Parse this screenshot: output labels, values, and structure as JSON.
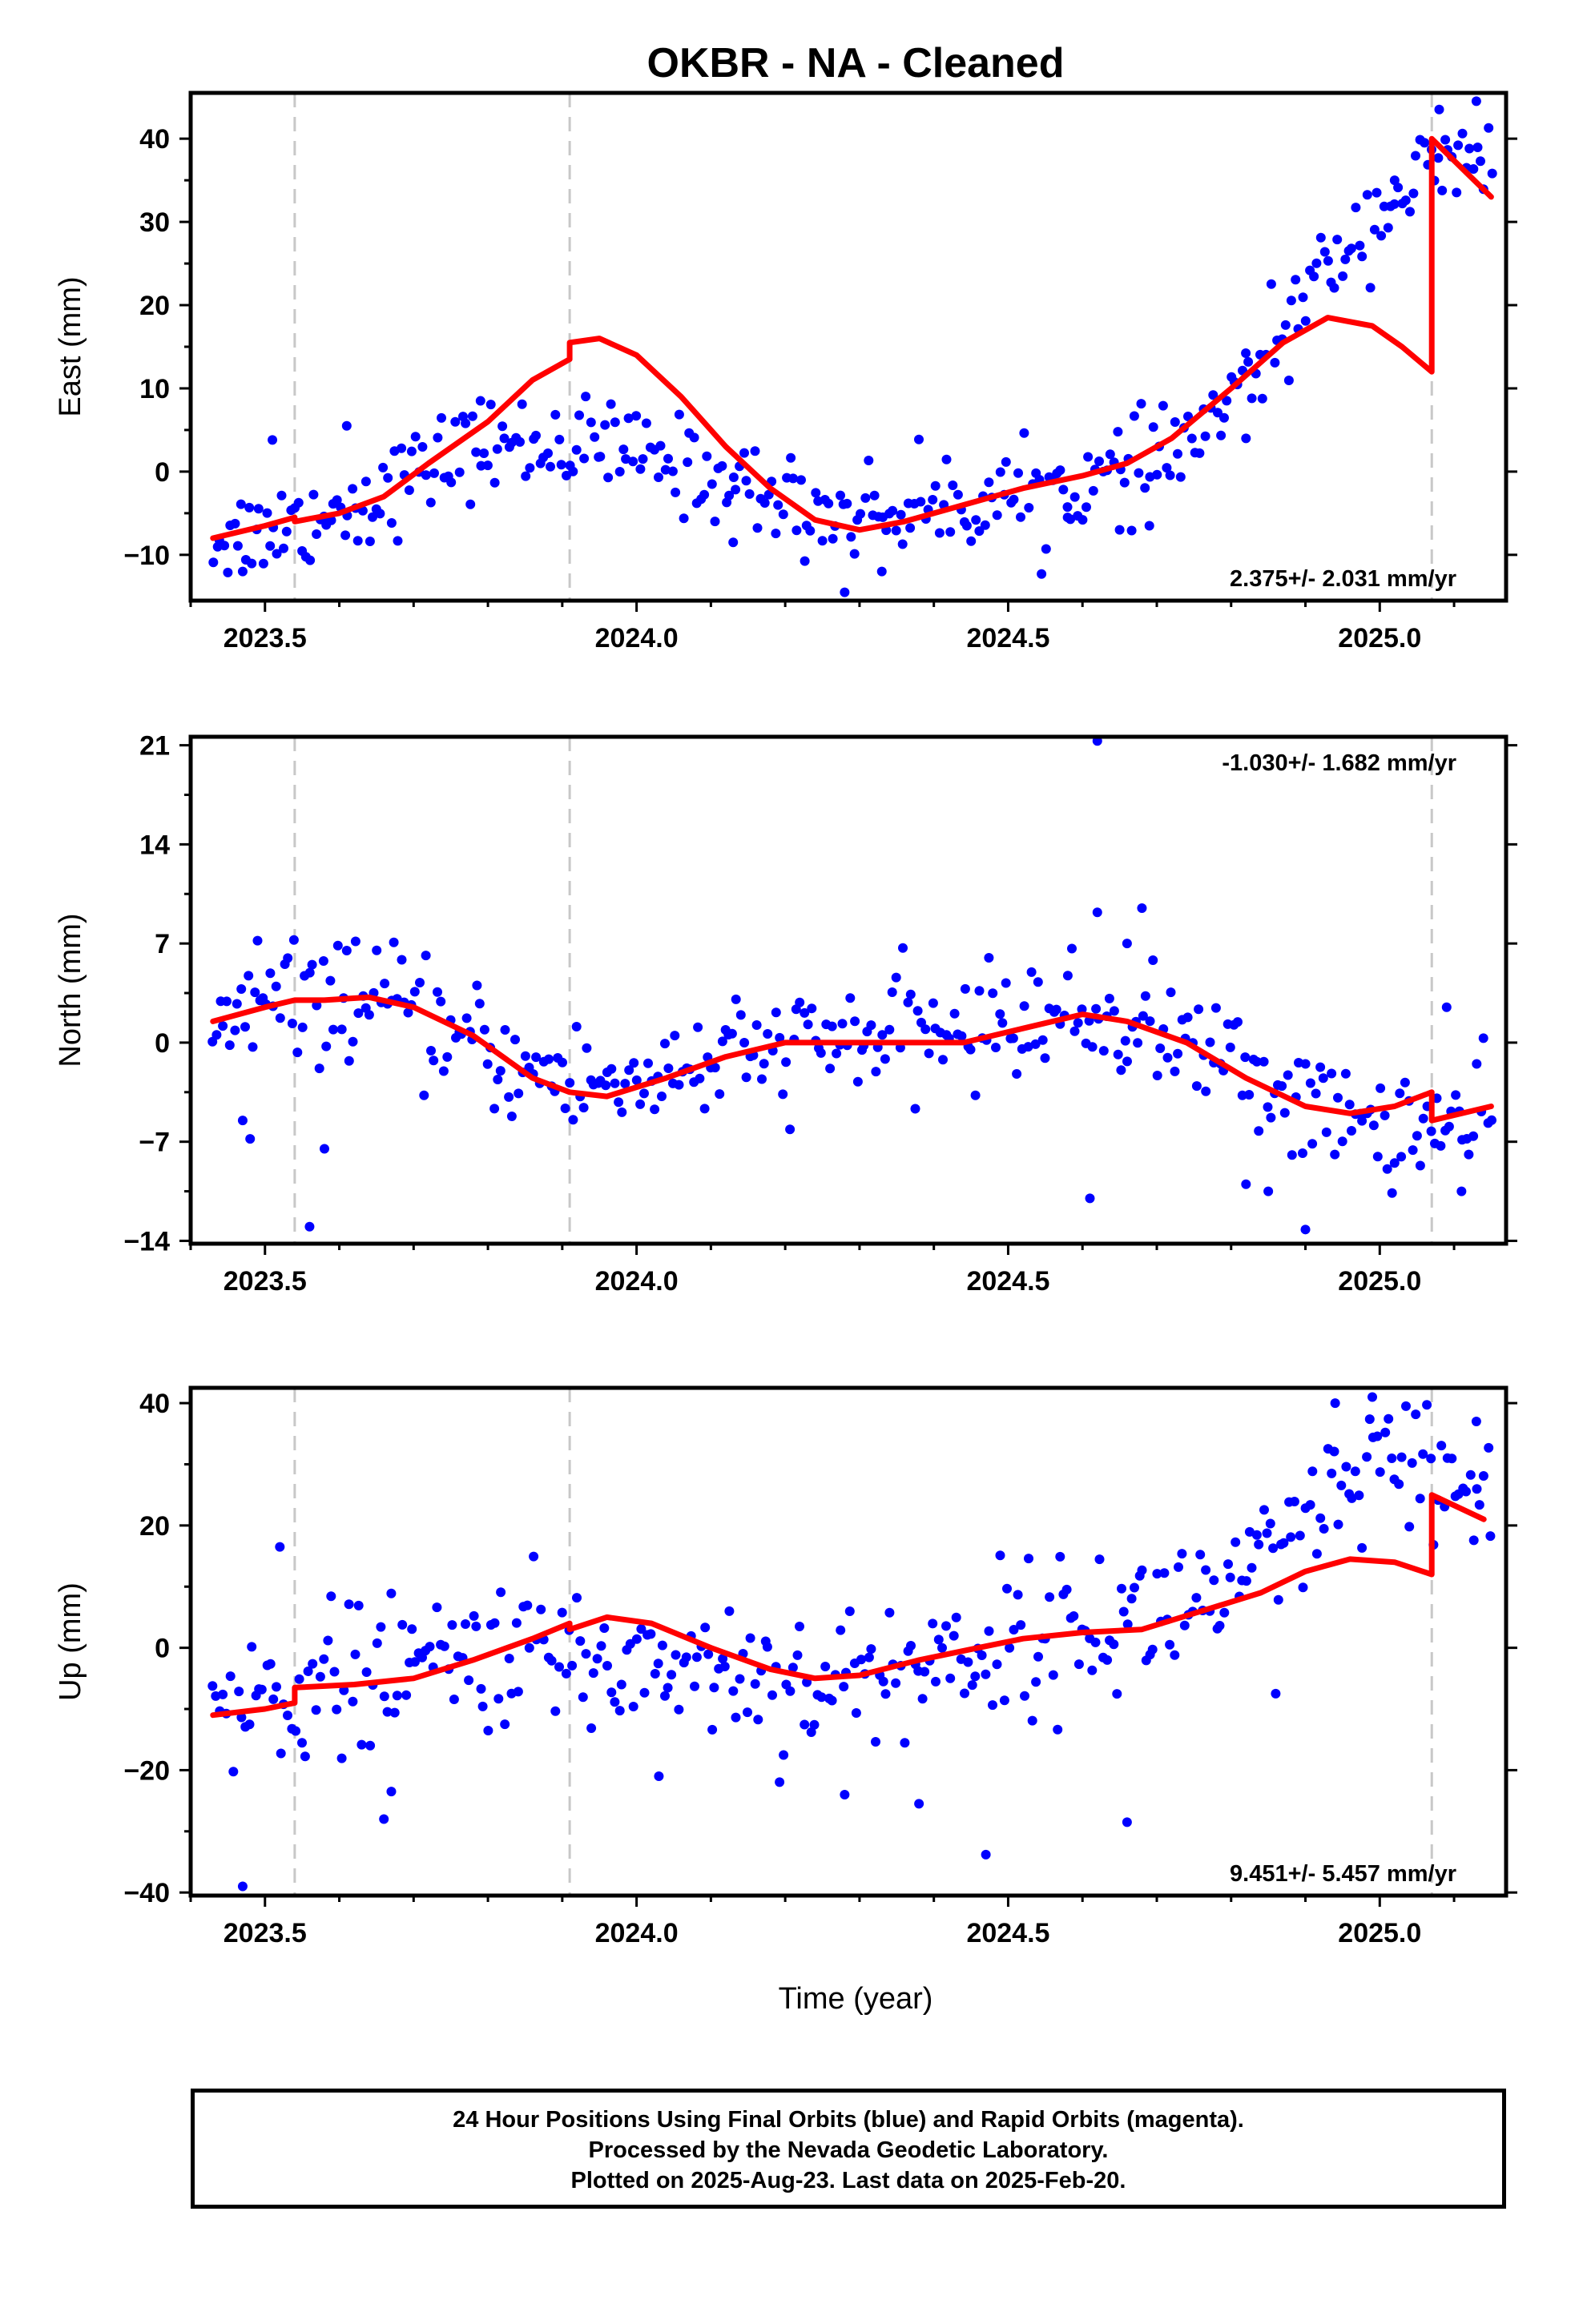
{
  "title": "OKBR  - NA - Cleaned",
  "xlabel": "Time (year)",
  "footer": {
    "line1": "24 Hour Positions Using Final Orbits (blue) and Rapid Orbits (magenta).",
    "line2": "Processed by the Nevada Geodetic Laboratory.",
    "line3": "Plotted on 2025-Aug-23. Last data on 2025-Feb-20."
  },
  "colors": {
    "points": "#0000ff",
    "model": "#ff0000",
    "events": "#c8c8c8",
    "frame": "#000000"
  },
  "chart_data": [
    {
      "type": "scatter",
      "ylabel": "East (mm)",
      "rate": "2.375+/- 2.031 mm/yr",
      "rate_position": "bottom-right",
      "xlim": [
        2023.4,
        2025.17
      ],
      "ylim": [
        -15.5,
        45.5
      ],
      "xticks": [
        2023.5,
        2024.0,
        2024.5,
        2025.0
      ],
      "xtick_labels": [
        "2023.5",
        "2024.0",
        "2024.5",
        "2025.0"
      ],
      "yticks": [
        -10,
        0,
        10,
        20,
        30,
        40
      ],
      "ytick_labels": [
        "−10",
        "0",
        "10",
        "20",
        "30",
        "40"
      ],
      "event_lines": [
        2023.54,
        2023.91,
        2025.07
      ],
      "series": [
        {
          "role": "model",
          "points": [
            [
              2023.43,
              -8
            ],
            [
              2023.5,
              -6.5
            ],
            [
              2023.54,
              -5.5
            ],
            [
              2023.54,
              -6
            ],
            [
              2023.6,
              -5
            ],
            [
              2023.66,
              -3
            ],
            [
              2023.72,
              1
            ],
            [
              2023.8,
              6
            ],
            [
              2023.86,
              11
            ],
            [
              2023.91,
              13.5
            ],
            [
              2023.91,
              15.5
            ],
            [
              2023.95,
              16
            ],
            [
              2024.0,
              14
            ],
            [
              2024.06,
              9
            ],
            [
              2024.12,
              3
            ],
            [
              2024.18,
              -2
            ],
            [
              2024.24,
              -5.8
            ],
            [
              2024.3,
              -7
            ],
            [
              2024.36,
              -6
            ],
            [
              2024.44,
              -4
            ],
            [
              2024.52,
              -2
            ],
            [
              2024.6,
              -0.5
            ],
            [
              2024.66,
              1
            ],
            [
              2024.72,
              4
            ],
            [
              2024.8,
              10
            ],
            [
              2024.87,
              15.5
            ],
            [
              2024.93,
              18.5
            ],
            [
              2024.99,
              17.5
            ],
            [
              2025.03,
              15
            ],
            [
              2025.07,
              12
            ],
            [
              2025.07,
              40
            ],
            [
              2025.15,
              33
            ]
          ]
        },
        {
          "role": "observations",
          "trend": [
            [
              2023.43,
              -8
            ],
            [
              2023.55,
              -6
            ],
            [
              2023.65,
              -3
            ],
            [
              2023.75,
              2
            ],
            [
              2023.85,
              3.5
            ],
            [
              2023.95,
              3
            ],
            [
              2024.05,
              1
            ],
            [
              2024.15,
              -2
            ],
            [
              2024.25,
              -5
            ],
            [
              2024.35,
              -4.5
            ],
            [
              2024.45,
              -3.5
            ],
            [
              2024.55,
              -2.5
            ],
            [
              2024.65,
              -0.5
            ],
            [
              2024.72,
              2
            ],
            [
              2024.8,
              8
            ],
            [
              2024.88,
              18
            ],
            [
              2024.95,
              27
            ],
            [
              2025.02,
              33
            ],
            [
              2025.07,
              36
            ],
            [
              2025.15,
              37
            ]
          ],
          "scatter_sd": 2.8,
          "outliers": [
            [
              2023.47,
              -12
            ],
            [
              2023.51,
              3.8
            ],
            [
              2023.61,
              5.5
            ],
            [
              2023.79,
              8.5
            ],
            [
              2024.13,
              -8.5
            ],
            [
              2024.28,
              -14.5
            ],
            [
              2024.33,
              -12
            ],
            [
              2024.58,
              -5.5
            ],
            [
              2024.65,
              -7
            ],
            [
              2024.69,
              -6.5
            ],
            [
              2024.82,
              4
            ],
            [
              2025.08,
              43.5
            ],
            [
              2025.13,
              44.5
            ],
            [
              2025.02,
              35
            ]
          ],
          "count": 360
        }
      ]
    },
    {
      "type": "scatter",
      "ylabel": "North (mm)",
      "rate": "-1.030+/- 1.682 mm/yr",
      "rate_position": "top-right",
      "xlim": [
        2023.4,
        2025.17
      ],
      "ylim": [
        -14.2,
        21.6
      ],
      "xticks": [
        2023.5,
        2024.0,
        2024.5,
        2025.0
      ],
      "xtick_labels": [
        "2023.5",
        "2024.0",
        "2024.5",
        "2025.0"
      ],
      "yticks": [
        -14,
        -7,
        0,
        7,
        14,
        21
      ],
      "ytick_labels": [
        "−14",
        "−7",
        "0",
        "7",
        "14",
        "21"
      ],
      "event_lines": [
        2023.54,
        2023.91,
        2025.07
      ],
      "series": [
        {
          "role": "model",
          "points": [
            [
              2023.43,
              1.5
            ],
            [
              2023.5,
              2.5
            ],
            [
              2023.54,
              3
            ],
            [
              2023.58,
              3
            ],
            [
              2023.64,
              3.2
            ],
            [
              2023.7,
              2.5
            ],
            [
              2023.78,
              0.5
            ],
            [
              2023.86,
              -2.5
            ],
            [
              2023.91,
              -3.5
            ],
            [
              2023.96,
              -3.8
            ],
            [
              2024.04,
              -2.5
            ],
            [
              2024.12,
              -1
            ],
            [
              2024.2,
              0
            ],
            [
              2024.28,
              0
            ],
            [
              2024.36,
              0
            ],
            [
              2024.44,
              0
            ],
            [
              2024.52,
              1
            ],
            [
              2024.6,
              2
            ],
            [
              2024.66,
              1.5
            ],
            [
              2024.74,
              0
            ],
            [
              2024.82,
              -2.5
            ],
            [
              2024.9,
              -4.5
            ],
            [
              2024.96,
              -5
            ],
            [
              2025.02,
              -4.5
            ],
            [
              2025.07,
              -3.5
            ],
            [
              2025.07,
              -5.5
            ],
            [
              2025.15,
              -4.5
            ]
          ]
        },
        {
          "role": "observations",
          "trend": [
            [
              2023.43,
              1.5
            ],
            [
              2023.55,
              3
            ],
            [
              2023.65,
              3
            ],
            [
              2023.75,
              0.5
            ],
            [
              2023.85,
              -2
            ],
            [
              2023.95,
              -3
            ],
            [
              2024.05,
              -2
            ],
            [
              2024.15,
              -1
            ],
            [
              2024.25,
              0
            ],
            [
              2024.35,
              0.5
            ],
            [
              2024.45,
              1
            ],
            [
              2024.55,
              2
            ],
            [
              2024.65,
              1.5
            ],
            [
              2024.75,
              0
            ],
            [
              2024.85,
              -3
            ],
            [
              2024.95,
              -5.5
            ],
            [
              2025.07,
              -6
            ],
            [
              2025.15,
              -6
            ]
          ],
          "scatter_sd": 2.0,
          "outliers": [
            [
              2023.47,
              -5.5
            ],
            [
              2023.48,
              -6.8
            ],
            [
              2023.49,
              7.2
            ],
            [
              2023.56,
              -13
            ],
            [
              2023.58,
              -7.5
            ],
            [
              2023.61,
              6.5
            ],
            [
              2024.62,
              21.3
            ],
            [
              2024.62,
              9.2
            ],
            [
              2024.66,
              7
            ],
            [
              2024.68,
              9.5
            ],
            [
              2024.61,
              -11
            ],
            [
              2024.82,
              -10
            ],
            [
              2024.85,
              -10.5
            ],
            [
              2024.9,
              -13.2
            ],
            [
              2025.11,
              -10.5
            ],
            [
              2025.09,
              2.5
            ]
          ],
          "count": 360
        }
      ]
    },
    {
      "type": "scatter",
      "ylabel": "Up (mm)",
      "rate": "9.451+/- 5.457 mm/yr",
      "rate_position": "bottom-right",
      "xlim": [
        2023.4,
        2025.17
      ],
      "ylim": [
        -40.5,
        42.5
      ],
      "xticks": [
        2023.5,
        2024.0,
        2024.5,
        2025.0
      ],
      "xtick_labels": [
        "2023.5",
        "2024.0",
        "2024.5",
        "2025.0"
      ],
      "yticks": [
        -40,
        -20,
        0,
        20,
        40
      ],
      "ytick_labels": [
        "−40",
        "−20",
        "0",
        "20",
        "40"
      ],
      "event_lines": [
        2023.54,
        2023.91,
        2025.07
      ],
      "series": [
        {
          "role": "model",
          "points": [
            [
              2023.43,
              -11
            ],
            [
              2023.5,
              -10
            ],
            [
              2023.54,
              -9
            ],
            [
              2023.54,
              -6.5
            ],
            [
              2023.62,
              -6
            ],
            [
              2023.7,
              -5
            ],
            [
              2023.78,
              -2
            ],
            [
              2023.86,
              1.5
            ],
            [
              2023.91,
              4
            ],
            [
              2023.91,
              3
            ],
            [
              2023.96,
              5
            ],
            [
              2024.02,
              4
            ],
            [
              2024.1,
              0
            ],
            [
              2024.18,
              -3.5
            ],
            [
              2024.24,
              -5
            ],
            [
              2024.3,
              -4.5
            ],
            [
              2024.38,
              -2
            ],
            [
              2024.46,
              0
            ],
            [
              2024.52,
              1.5
            ],
            [
              2024.6,
              2.5
            ],
            [
              2024.68,
              3
            ],
            [
              2024.76,
              6
            ],
            [
              2024.84,
              9
            ],
            [
              2024.9,
              12.5
            ],
            [
              2024.96,
              14.5
            ],
            [
              2025.02,
              14
            ],
            [
              2025.07,
              12
            ],
            [
              2025.07,
              25
            ],
            [
              2025.14,
              21
            ]
          ]
        },
        {
          "role": "observations",
          "trend": [
            [
              2023.43,
              -11
            ],
            [
              2023.55,
              -6
            ],
            [
              2023.65,
              -5
            ],
            [
              2023.75,
              -2
            ],
            [
              2023.85,
              0
            ],
            [
              2023.95,
              -3
            ],
            [
              2024.05,
              -2
            ],
            [
              2024.15,
              -4
            ],
            [
              2024.25,
              -6
            ],
            [
              2024.35,
              -4
            ],
            [
              2024.45,
              0
            ],
            [
              2024.55,
              2
            ],
            [
              2024.65,
              4
            ],
            [
              2024.75,
              8
            ],
            [
              2024.85,
              12
            ],
            [
              2024.93,
              22
            ],
            [
              2025.0,
              30
            ],
            [
              2025.07,
              26
            ],
            [
              2025.14,
              26
            ]
          ],
          "scatter_sd": 6.0,
          "outliers": [
            [
              2023.47,
              -39
            ],
            [
              2023.52,
              16.5
            ],
            [
              2023.66,
              -28
            ],
            [
              2023.67,
              -23.5
            ],
            [
              2024.47,
              -33.8
            ],
            [
              2024.66,
              -28.5
            ],
            [
              2024.03,
              -21
            ],
            [
              2024.28,
              -24
            ],
            [
              2024.38,
              -25.5
            ],
            [
              2024.86,
              -7.5
            ],
            [
              2024.94,
              40
            ],
            [
              2024.99,
              41
            ],
            [
              2025.13,
              37
            ]
          ],
          "count": 360
        }
      ]
    }
  ]
}
